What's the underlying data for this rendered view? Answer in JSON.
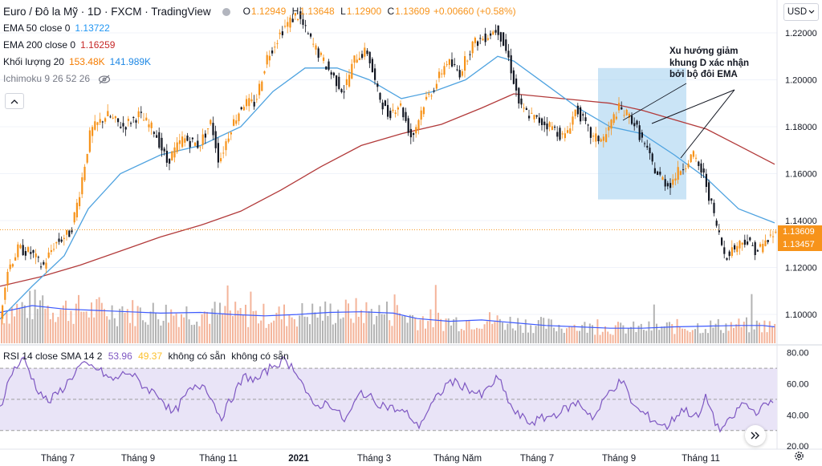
{
  "header": {
    "title": "Euro / Đô la Mỹ · 1D · FXCM · TradingView",
    "ohlc": [
      {
        "key": "O",
        "value": "1.12949"
      },
      {
        "key": "H",
        "value": "1.13648"
      },
      {
        "key": "L",
        "value": "1.12900"
      },
      {
        "key": "C",
        "value": "1.13609"
      }
    ],
    "change": "+0.00660 (+0.58%)",
    "currency_button": "USD"
  },
  "legend": {
    "ema50": {
      "label": "EMA 50 close 0",
      "value": "1.13722",
      "color": "#2196f3"
    },
    "ema200": {
      "label": "EMA 200 close 0",
      "value": "1.16259",
      "color": "#c62828"
    },
    "volume": {
      "label": "Khối lượng 20",
      "value1": "153.48K",
      "color1": "#f57c00",
      "value2": "141.989K",
      "color2": "#1e88e5"
    },
    "ichimoku": {
      "label": "Ichimoku 9 26 52 26"
    }
  },
  "rsi_legend": {
    "label": "RSI 14 close SMA 14 2",
    "value1": "53.96",
    "color1": "#7e57c2",
    "value2": "49.37",
    "color2": "#fbc02d",
    "na1": "không có sẵn",
    "na2": "không có sẵn"
  },
  "annotation": {
    "lines": [
      "Xu hướng giảm",
      "khung D xác nhận",
      "bởi bộ đôi EMA"
    ]
  },
  "price_tags": {
    "close": "1.13609",
    "ema": "1.13457",
    "close_color": "#f7931a",
    "ema_color": "#f7931a"
  },
  "colors": {
    "up": "#f7931a",
    "down": "#131722",
    "ema50": "#4fa3e0",
    "ema200": "#b23a3a",
    "rsi": "#7e57c2",
    "rsi_band": "#e9e4f7",
    "vol_up": "#f4b49a",
    "vol_down": "#b3b3b3",
    "vol_ma": "#3d5afe",
    "highlight": "#9fcdee"
  },
  "chart_data": {
    "type": "candlestick",
    "symbol": "EURUSD",
    "price_axis": {
      "ticks": [
        1.1,
        1.12,
        1.14,
        1.16,
        1.18,
        1.2,
        1.22
      ],
      "ylim": [
        1.087,
        1.234
      ]
    },
    "rsi_axis": {
      "ticks": [
        20.0,
        40.0,
        60.0,
        80.0
      ],
      "ylim": [
        18,
        85
      ],
      "band": [
        30,
        70
      ]
    },
    "x_ticks": [
      "Tháng 7",
      "Tháng 9",
      "Tháng 11",
      "2021",
      "Tháng 3",
      "Tháng Năm",
      "Tháng 7",
      "Tháng 9",
      "Tháng 11"
    ],
    "x_tick_bold": [
      false,
      false,
      false,
      true,
      false,
      false,
      false,
      false,
      false
    ],
    "price_path": [
      [
        0,
        1.092
      ],
      [
        10,
        1.118
      ],
      [
        25,
        1.128
      ],
      [
        42,
        1.126
      ],
      [
        55,
        1.12
      ],
      [
        70,
        1.13
      ],
      [
        90,
        1.135
      ],
      [
        100,
        1.15
      ],
      [
        115,
        1.178
      ],
      [
        135,
        1.185
      ],
      [
        155,
        1.18
      ],
      [
        175,
        1.185
      ],
      [
        195,
        1.178
      ],
      [
        210,
        1.165
      ],
      [
        230,
        1.175
      ],
      [
        250,
        1.172
      ],
      [
        265,
        1.182
      ],
      [
        275,
        1.165
      ],
      [
        290,
        1.18
      ],
      [
        305,
        1.19
      ],
      [
        320,
        1.19
      ],
      [
        335,
        1.21
      ],
      [
        355,
        1.222
      ],
      [
        372,
        1.228
      ],
      [
        392,
        1.215
      ],
      [
        410,
        1.205
      ],
      [
        430,
        1.195
      ],
      [
        445,
        1.21
      ],
      [
        460,
        1.212
      ],
      [
        472,
        1.195
      ],
      [
        485,
        1.185
      ],
      [
        500,
        1.19
      ],
      [
        515,
        1.175
      ],
      [
        530,
        1.19
      ],
      [
        545,
        1.198
      ],
      [
        558,
        1.208
      ],
      [
        575,
        1.203
      ],
      [
        590,
        1.215
      ],
      [
        605,
        1.218
      ],
      [
        622,
        1.222
      ],
      [
        635,
        1.21
      ],
      [
        650,
        1.188
      ],
      [
        670,
        1.183
      ],
      [
        690,
        1.18
      ],
      [
        705,
        1.175
      ],
      [
        720,
        1.188
      ],
      [
        740,
        1.175
      ],
      [
        755,
        1.175
      ],
      [
        772,
        1.188
      ],
      [
        790,
        1.183
      ],
      [
        805,
        1.172
      ],
      [
        820,
        1.16
      ],
      [
        835,
        1.155
      ],
      [
        850,
        1.162
      ],
      [
        865,
        1.168
      ],
      [
        880,
        1.158
      ],
      [
        893,
        1.14
      ],
      [
        905,
        1.125
      ],
      [
        915,
        1.128
      ],
      [
        930,
        1.132
      ],
      [
        945,
        1.127
      ],
      [
        965,
        1.134
      ]
    ],
    "ema50_path": [
      [
        0,
        1.098
      ],
      [
        40,
        1.112
      ],
      [
        80,
        1.125
      ],
      [
        110,
        1.145
      ],
      [
        150,
        1.16
      ],
      [
        200,
        1.168
      ],
      [
        250,
        1.172
      ],
      [
        300,
        1.18
      ],
      [
        340,
        1.195
      ],
      [
        380,
        1.205
      ],
      [
        420,
        1.205
      ],
      [
        460,
        1.2
      ],
      [
        500,
        1.192
      ],
      [
        540,
        1.195
      ],
      [
        580,
        1.2
      ],
      [
        620,
        1.21
      ],
      [
        640,
        1.208
      ],
      [
        680,
        1.198
      ],
      [
        720,
        1.188
      ],
      [
        760,
        1.18
      ],
      [
        800,
        1.177
      ],
      [
        840,
        1.168
      ],
      [
        880,
        1.158
      ],
      [
        920,
        1.145
      ],
      [
        965,
        1.139
      ]
    ],
    "ema200_path": [
      [
        0,
        1.112
      ],
      [
        50,
        1.116
      ],
      [
        100,
        1.121
      ],
      [
        150,
        1.127
      ],
      [
        200,
        1.133
      ],
      [
        250,
        1.138
      ],
      [
        300,
        1.144
      ],
      [
        350,
        1.153
      ],
      [
        400,
        1.163
      ],
      [
        450,
        1.172
      ],
      [
        500,
        1.177
      ],
      [
        550,
        1.181
      ],
      [
        600,
        1.188
      ],
      [
        640,
        1.194
      ],
      [
        700,
        1.192
      ],
      [
        760,
        1.19
      ],
      [
        800,
        1.187
      ],
      [
        840,
        1.183
      ],
      [
        880,
        1.179
      ],
      [
        920,
        1.172
      ],
      [
        965,
        1.164
      ]
    ],
    "rsi_path": [
      [
        0,
        45
      ],
      [
        15,
        68
      ],
      [
        30,
        76
      ],
      [
        45,
        58
      ],
      [
        60,
        48
      ],
      [
        80,
        58
      ],
      [
        100,
        72
      ],
      [
        120,
        70
      ],
      [
        140,
        62
      ],
      [
        160,
        68
      ],
      [
        180,
        58
      ],
      [
        200,
        52
      ],
      [
        215,
        40
      ],
      [
        235,
        55
      ],
      [
        255,
        60
      ],
      [
        275,
        38
      ],
      [
        290,
        52
      ],
      [
        305,
        65
      ],
      [
        320,
        62
      ],
      [
        340,
        72
      ],
      [
        355,
        75
      ],
      [
        370,
        68
      ],
      [
        390,
        45
      ],
      [
        410,
        48
      ],
      [
        430,
        36
      ],
      [
        450,
        55
      ],
      [
        470,
        48
      ],
      [
        490,
        44
      ],
      [
        510,
        40
      ],
      [
        520,
        32
      ],
      [
        540,
        48
      ],
      [
        560,
        62
      ],
      [
        580,
        58
      ],
      [
        600,
        52
      ],
      [
        620,
        64
      ],
      [
        640,
        42
      ],
      [
        660,
        35
      ],
      [
        690,
        40
      ],
      [
        720,
        48
      ],
      [
        740,
        38
      ],
      [
        760,
        56
      ],
      [
        775,
        62
      ],
      [
        790,
        45
      ],
      [
        810,
        38
      ],
      [
        830,
        32
      ],
      [
        850,
        44
      ],
      [
        870,
        38
      ],
      [
        880,
        52
      ],
      [
        895,
        30
      ],
      [
        910,
        36
      ],
      [
        925,
        48
      ],
      [
        940,
        42
      ],
      [
        955,
        46
      ],
      [
        965,
        52
      ]
    ],
    "volume_ma_path": [
      [
        0,
        0.45
      ],
      [
        40,
        0.55
      ],
      [
        80,
        0.5
      ],
      [
        120,
        0.48
      ],
      [
        160,
        0.46
      ],
      [
        200,
        0.44
      ],
      [
        250,
        0.45
      ],
      [
        290,
        0.42
      ],
      [
        330,
        0.4
      ],
      [
        370,
        0.42
      ],
      [
        410,
        0.45
      ],
      [
        450,
        0.46
      ],
      [
        490,
        0.44
      ],
      [
        520,
        0.36
      ],
      [
        560,
        0.32
      ],
      [
        600,
        0.34
      ],
      [
        640,
        0.3
      ],
      [
        680,
        0.26
      ],
      [
        720,
        0.24
      ],
      [
        760,
        0.22
      ],
      [
        800,
        0.22
      ],
      [
        840,
        0.24
      ],
      [
        880,
        0.25
      ],
      [
        920,
        0.26
      ],
      [
        950,
        0.26
      ],
      [
        965,
        0.24
      ]
    ],
    "highlight_box": {
      "x_range": [
        745,
        855
      ],
      "price_range": [
        1.149,
        1.205
      ]
    },
    "current_price": 1.13609,
    "ema_price_tag": 1.13457
  }
}
